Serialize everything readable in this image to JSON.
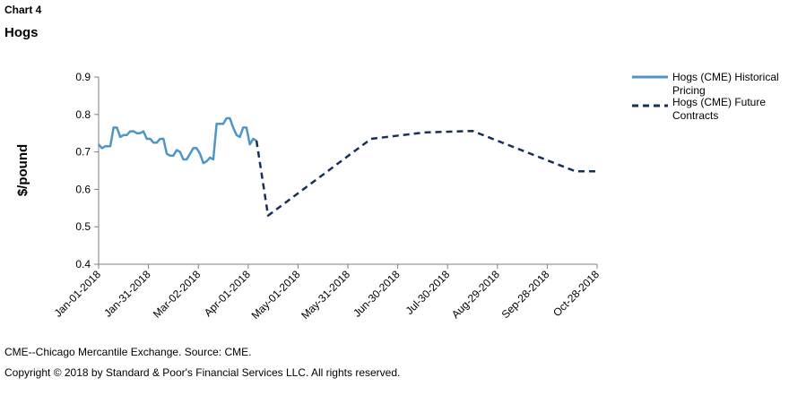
{
  "header": {
    "chart_label": "Chart 4",
    "title": "Hogs"
  },
  "footer": {
    "note": "CME--Chicago Mercantile Exchange. Source: CME.",
    "copyright": "Copyright © 2018 by Standard & Poor's Financial Services LLC. All rights reserved."
  },
  "colors": {
    "historical": "#4f95c6",
    "future": "#17305b",
    "axis": "#808080"
  },
  "chart_data": {
    "type": "line",
    "title": "Hogs",
    "xlabel": "",
    "ylabel": "$/pound",
    "xlim": [
      "2018-01-01",
      "2018-10-28"
    ],
    "ylim": [
      0.4,
      0.9
    ],
    "y_ticks": [
      0.4,
      0.5,
      0.6,
      0.7,
      0.8,
      0.9
    ],
    "y_tick_labels": [
      "0.4",
      "0.5",
      "0.6",
      "0.7",
      "0.8",
      "0.9"
    ],
    "x_ticks": [
      "2018-01-01",
      "2018-01-31",
      "2018-03-02",
      "2018-04-01",
      "2018-05-01",
      "2018-05-31",
      "2018-06-30",
      "2018-07-30",
      "2018-08-29",
      "2018-09-28",
      "2018-10-28"
    ],
    "x_tick_labels": [
      "Jan-01-2018",
      "Jan-31-2018",
      "Mar-02-2018",
      "Apr-01-2018",
      "May-01-2018",
      "May-31-2018",
      "Jun-30-2018",
      "Jul-30-2018",
      "Aug-29-2018",
      "Sep-28-2018",
      "Oct-28-2018"
    ],
    "grid": false,
    "legend_position": "top-right",
    "series": [
      {
        "name": "Hogs (CME) Historical Pricing",
        "style": "solid",
        "x": [
          "2018-01-01",
          "2018-01-03",
          "2018-01-05",
          "2018-01-08",
          "2018-01-10",
          "2018-01-12",
          "2018-01-14",
          "2018-01-16",
          "2018-01-18",
          "2018-01-20",
          "2018-01-22",
          "2018-01-24",
          "2018-01-26",
          "2018-01-28",
          "2018-01-30",
          "2018-02-01",
          "2018-02-03",
          "2018-02-05",
          "2018-02-07",
          "2018-02-09",
          "2018-02-11",
          "2018-02-13",
          "2018-02-15",
          "2018-02-17",
          "2018-02-19",
          "2018-02-21",
          "2018-02-23",
          "2018-02-25",
          "2018-02-27",
          "2018-03-01",
          "2018-03-03",
          "2018-03-05",
          "2018-03-07",
          "2018-03-09",
          "2018-03-11",
          "2018-03-13",
          "2018-03-15",
          "2018-03-17",
          "2018-03-19",
          "2018-03-21",
          "2018-03-23",
          "2018-03-25",
          "2018-03-27",
          "2018-03-29",
          "2018-03-31",
          "2018-04-02",
          "2018-04-04",
          "2018-04-06"
        ],
        "values": [
          0.72,
          0.71,
          0.715,
          0.715,
          0.765,
          0.765,
          0.74,
          0.745,
          0.745,
          0.755,
          0.755,
          0.75,
          0.75,
          0.755,
          0.735,
          0.735,
          0.725,
          0.725,
          0.735,
          0.735,
          0.695,
          0.69,
          0.69,
          0.705,
          0.7,
          0.68,
          0.68,
          0.695,
          0.71,
          0.71,
          0.695,
          0.67,
          0.675,
          0.685,
          0.68,
          0.775,
          0.775,
          0.775,
          0.79,
          0.79,
          0.765,
          0.745,
          0.74,
          0.765,
          0.765,
          0.72,
          0.735,
          0.73
        ]
      },
      {
        "name": "Hogs (CME) Future Contracts",
        "style": "dashed",
        "x": [
          "2018-04-06",
          "2018-04-13",
          "2018-06-14",
          "2018-07-16",
          "2018-08-14",
          "2018-10-15",
          "2018-10-28"
        ],
        "values": [
          0.73,
          0.53,
          0.735,
          0.752,
          0.756,
          0.648,
          0.648
        ]
      }
    ]
  }
}
